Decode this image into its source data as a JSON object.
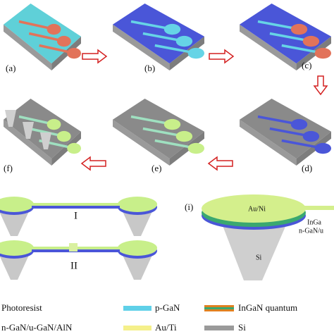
{
  "panels": [
    {
      "label": "(a)"
    },
    {
      "label": "(b)"
    },
    {
      "label": "(c)"
    },
    {
      "label": "(d)"
    },
    {
      "label": "(e)"
    },
    {
      "label": "(f)"
    }
  ],
  "detail_g": {
    "structures": [
      "I",
      "II"
    ]
  },
  "detail_i": {
    "label": "(i)",
    "layers": [
      "Au/Ni",
      "InGa",
      "n-GaN/u",
      "Si"
    ]
  },
  "legend": [
    "Photoresist",
    "n-GaN/u-GaN/AlN",
    "p-GaN",
    "Au/Ti",
    "InGaN quantum",
    "Si"
  ]
}
